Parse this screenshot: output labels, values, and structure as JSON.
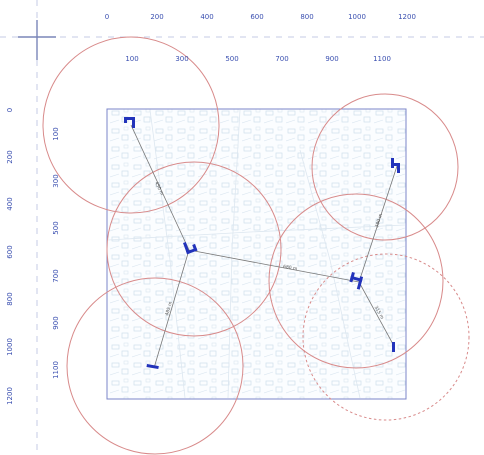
{
  "axes": {
    "x_top_row": [
      "0",
      "200",
      "400",
      "600",
      "800",
      "1000",
      "1200"
    ],
    "x_second_row": [
      "100",
      "300",
      "500",
      "700",
      "900",
      "1100"
    ],
    "y_outer_col": [
      "0",
      "200",
      "400",
      "600",
      "800",
      "1000",
      "1200"
    ],
    "y_inner_col": [
      "100",
      "300",
      "500",
      "700",
      "900",
      "1100"
    ]
  },
  "nodes": [
    {
      "id": "A"
    },
    {
      "id": "B"
    },
    {
      "id": "C"
    },
    {
      "id": "D"
    },
    {
      "id": "E"
    },
    {
      "id": "F"
    }
  ],
  "links": [
    {
      "label": "450 m"
    },
    {
      "label": "485 m"
    },
    {
      "label": "680 m"
    },
    {
      "label": "380 m"
    },
    {
      "label": "315 m"
    }
  ],
  "colors": {
    "axis_text": "#3a4fb0",
    "guide_lines": "#c5cbe6",
    "map_border": "#7b85c8",
    "map_texture": "#c9dbe8",
    "range_circle": "#d88a8a",
    "node_marker": "#2233bb",
    "link_line": "#777777"
  },
  "icons": {
    "node": "bracket-marker-icon",
    "origin": "crosshair-icon"
  }
}
